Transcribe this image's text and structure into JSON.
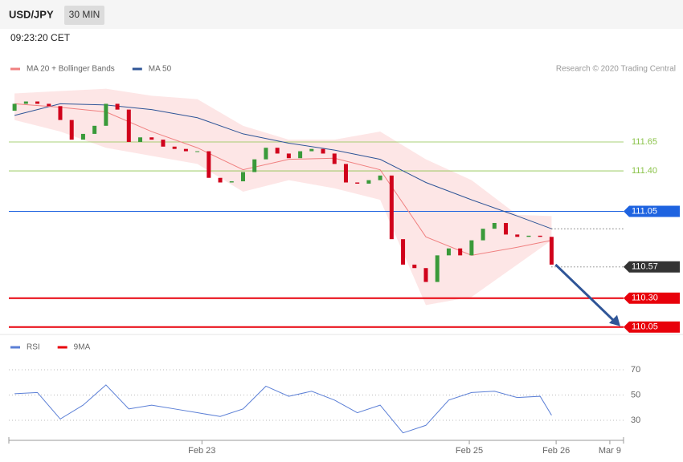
{
  "header": {
    "symbol": "USD/JPY",
    "interval": "30 MIN",
    "time": "09:23:20 CET"
  },
  "credit": "Research © 2020 Trading Central",
  "chart_data": [
    {
      "type": "candlestick",
      "legend": [
        {
          "name": "MA 20 + Bollinger Bands",
          "color": "#f08080"
        },
        {
          "name": "MA 50",
          "color": "#2f5597"
        }
      ],
      "xlim": [
        -0.5,
        53.3
      ],
      "xticks": [
        {
          "value": 16.4,
          "label": "Feb 23"
        },
        {
          "value": 39.8,
          "label": "Feb 25"
        },
        {
          "value": 47.4,
          "label": "Feb 26"
        },
        {
          "value": 52.1,
          "label": "Mar 9"
        }
      ],
      "ylim": [
        110,
        112.6
      ],
      "open": [
        111.92,
        111.98,
        112.0,
        111.98,
        111.96,
        111.84,
        111.67,
        111.72,
        111.79,
        111.98,
        111.93,
        111.65,
        111.69,
        111.67,
        111.61,
        111.59,
        111.57,
        111.57,
        111.34,
        111.3,
        111.31,
        111.39,
        111.5,
        111.6,
        111.55,
        111.51,
        111.57,
        111.59,
        111.55,
        111.46,
        111.3,
        111.29,
        111.32,
        111.36,
        110.81,
        110.59,
        110.56,
        110.44,
        110.67,
        110.73,
        110.67,
        110.8,
        110.9,
        110.95,
        110.85,
        110.83,
        110.84,
        110.83
      ],
      "close": [
        111.98,
        112.0,
        111.98,
        111.96,
        111.84,
        111.67,
        111.72,
        111.79,
        111.98,
        111.93,
        111.65,
        111.69,
        111.67,
        111.61,
        111.59,
        111.57,
        111.57,
        111.34,
        111.3,
        111.31,
        111.39,
        111.5,
        111.6,
        111.55,
        111.51,
        111.57,
        111.59,
        111.55,
        111.46,
        111.3,
        111.29,
        111.32,
        111.36,
        110.81,
        110.59,
        110.56,
        110.44,
        110.67,
        110.73,
        110.67,
        110.8,
        110.9,
        110.95,
        110.85,
        110.83,
        110.84,
        110.83,
        110.59
      ],
      "up_color": "#3a9a3a",
      "down_color": "#d0021b",
      "series": [
        {
          "name": "MA 50",
          "color": "#2f5597",
          "x": [
            0,
            4,
            8,
            12,
            16,
            20,
            24,
            28,
            32,
            36,
            40,
            44,
            47
          ],
          "values": [
            111.88,
            111.98,
            111.97,
            111.93,
            111.86,
            111.72,
            111.64,
            111.58,
            111.5,
            111.3,
            111.15,
            111.01,
            110.9
          ]
        },
        {
          "name": "MA 20",
          "color": "#f08080",
          "x": [
            0,
            4,
            8,
            12,
            16,
            20,
            24,
            28,
            32,
            36,
            40,
            44,
            47
          ],
          "values": [
            111.98,
            111.95,
            111.91,
            111.74,
            111.6,
            111.41,
            111.5,
            111.51,
            111.41,
            110.83,
            110.67,
            110.74,
            110.8
          ]
        }
      ],
      "band": {
        "color": "#fde2e2",
        "x": [
          0,
          4,
          8,
          12,
          16,
          20,
          24,
          28,
          32,
          36,
          40,
          44,
          47
        ],
        "upper": [
          112.07,
          112.09,
          112.11,
          112.05,
          112.02,
          111.79,
          111.67,
          111.67,
          111.74,
          111.5,
          111.32,
          111.02,
          111.01
        ],
        "lower": [
          111.84,
          111.74,
          111.6,
          111.53,
          111.46,
          111.22,
          111.32,
          111.25,
          111.15,
          110.24,
          110.31,
          110.59,
          110.8
        ]
      },
      "levels": [
        {
          "value": 111.65,
          "color": "#8bc34a",
          "boxed": false
        },
        {
          "value": 111.4,
          "label": "111.40",
          "color": "#8bc34a",
          "boxed": false
        },
        {
          "value": 111.05,
          "color": "#1e63e0",
          "boxed": true
        },
        {
          "value": 110.57,
          "color": "#333333",
          "boxed": true,
          "dotted": true
        },
        {
          "value": 110.3,
          "label": "110.30",
          "color": "#e8000b",
          "boxed": true
        },
        {
          "value": 110.05,
          "color": "#e8000b",
          "boxed": true
        }
      ]
    },
    {
      "type": "line",
      "legend": [
        {
          "name": "RSI",
          "color": "#5b7fd6"
        },
        {
          "name": "9MA",
          "color": "#e8000b"
        }
      ],
      "ylim": [
        15,
        85
      ],
      "yticks": [
        30,
        50,
        70
      ],
      "series": [
        {
          "name": "RSI",
          "color": "#5b7fd6",
          "x": [
            0,
            2,
            4,
            6,
            8,
            10,
            12,
            14,
            16,
            18,
            20,
            22,
            24,
            26,
            28,
            30,
            32,
            34,
            36,
            38,
            40,
            42,
            44,
            46,
            47
          ],
          "values": [
            51,
            52,
            31,
            42,
            58,
            39,
            42,
            39,
            36,
            33,
            39,
            57,
            49,
            53,
            46,
            36,
            42,
            20,
            26,
            46,
            52,
            53,
            48,
            49,
            34
          ]
        }
      ]
    }
  ]
}
